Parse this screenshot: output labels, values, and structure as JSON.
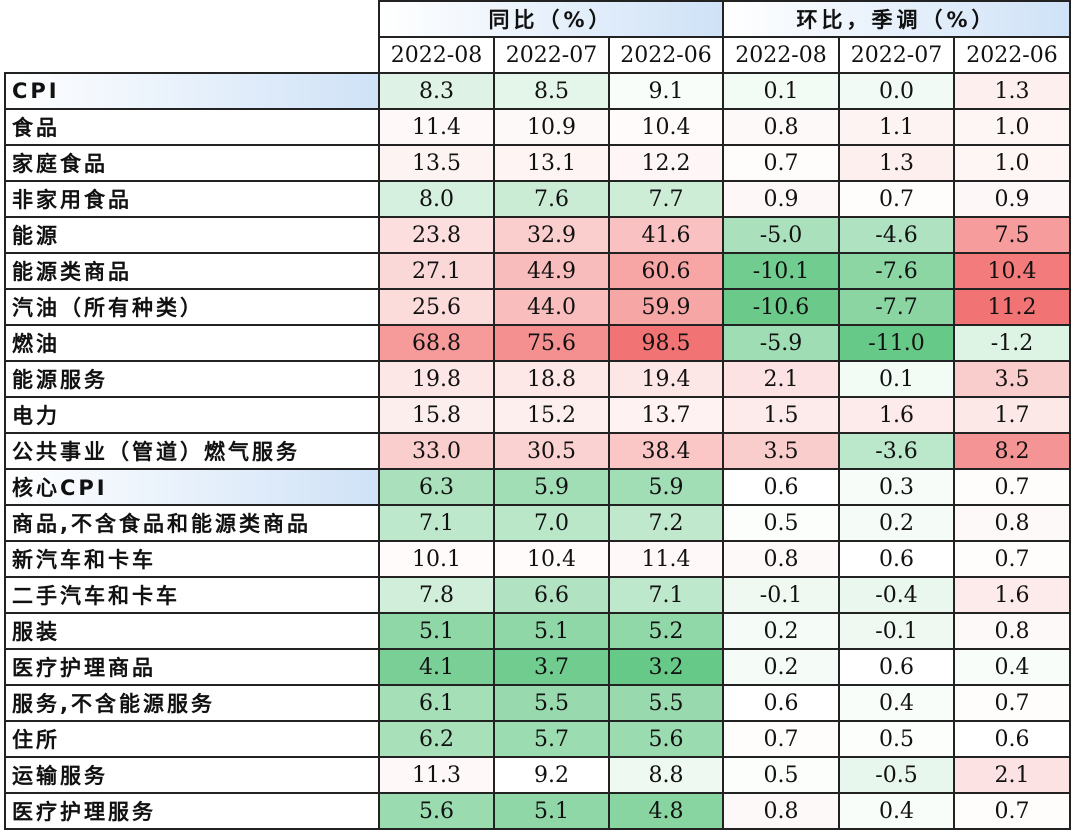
{
  "chart_data": {
    "type": "table",
    "group_headers": [
      "同比（%）",
      "环比，季调（%）"
    ],
    "columns": [
      "2022-08",
      "2022-07",
      "2022-06",
      "2022-08",
      "2022-07",
      "2022-06"
    ],
    "rows": [
      {
        "label": "CPI",
        "values": [
          8.3,
          8.5,
          9.1,
          0.1,
          0.0,
          1.3
        ]
      },
      {
        "label": "食品",
        "values": [
          11.4,
          10.9,
          10.4,
          0.8,
          1.1,
          1.0
        ]
      },
      {
        "label": "家庭食品",
        "values": [
          13.5,
          13.1,
          12.2,
          0.7,
          1.3,
          1.0
        ]
      },
      {
        "label": "非家用食品",
        "values": [
          8.0,
          7.6,
          7.7,
          0.9,
          0.7,
          0.9
        ]
      },
      {
        "label": "能源",
        "values": [
          23.8,
          32.9,
          41.6,
          -5.0,
          -4.6,
          7.5
        ]
      },
      {
        "label": "能源类商品",
        "values": [
          27.1,
          44.9,
          60.6,
          -10.1,
          -7.6,
          10.4
        ]
      },
      {
        "label": "汽油（所有种类）",
        "values": [
          25.6,
          44.0,
          59.9,
          -10.6,
          -7.7,
          11.2
        ]
      },
      {
        "label": "燃油",
        "values": [
          68.8,
          75.6,
          98.5,
          -5.9,
          -11.0,
          -1.2
        ]
      },
      {
        "label": "能源服务",
        "values": [
          19.8,
          18.8,
          19.4,
          2.1,
          0.1,
          3.5
        ]
      },
      {
        "label": "电力",
        "values": [
          15.8,
          15.2,
          13.7,
          1.5,
          1.6,
          1.7
        ]
      },
      {
        "label": "公共事业（管道）燃气服务",
        "values": [
          33.0,
          30.5,
          38.4,
          3.5,
          -3.6,
          8.2
        ]
      },
      {
        "label": "核心CPI",
        "values": [
          6.3,
          5.9,
          5.9,
          0.6,
          0.3,
          0.7
        ]
      },
      {
        "label": "商品,不含食品和能源类商品",
        "values": [
          7.1,
          7.0,
          7.2,
          0.5,
          0.2,
          0.8
        ]
      },
      {
        "label": "新汽车和卡车",
        "values": [
          10.1,
          10.4,
          11.4,
          0.8,
          0.6,
          0.7
        ]
      },
      {
        "label": "二手汽车和卡车",
        "values": [
          7.8,
          6.6,
          7.1,
          -0.1,
          -0.4,
          1.6
        ]
      },
      {
        "label": "服装",
        "values": [
          5.1,
          5.1,
          5.2,
          0.2,
          -0.1,
          0.8
        ]
      },
      {
        "label": "医疗护理商品",
        "values": [
          4.1,
          3.7,
          3.2,
          0.2,
          0.6,
          0.4
        ]
      },
      {
        "label": "服务,不含能源服务",
        "values": [
          6.1,
          5.5,
          5.5,
          0.6,
          0.4,
          0.7
        ]
      },
      {
        "label": "住所",
        "values": [
          6.2,
          5.7,
          5.6,
          0.7,
          0.5,
          0.6
        ]
      },
      {
        "label": "运输服务",
        "values": [
          11.3,
          9.2,
          8.8,
          0.5,
          -0.5,
          2.1
        ]
      },
      {
        "label": "医疗护理服务",
        "values": [
          5.6,
          5.1,
          4.8,
          0.8,
          0.4,
          0.7
        ]
      }
    ],
    "highlighted_rows": [
      "CPI",
      "核心CPI"
    ],
    "color_scale": {
      "low": "#4cbf72",
      "mid": "#ffffff",
      "high": "#f05a5a"
    }
  }
}
